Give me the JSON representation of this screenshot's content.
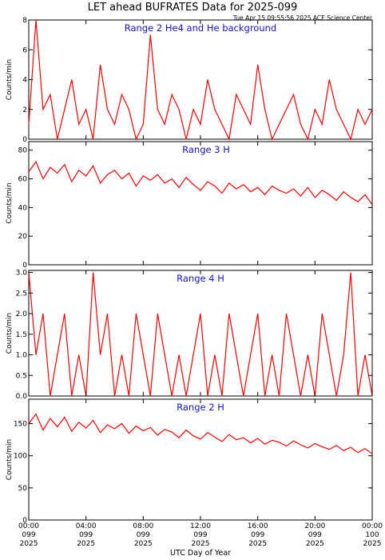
{
  "page": {
    "title": "LET ahead BUFRATES Data for 2025-099",
    "timestamp": "Tue Apr 15 09:55:56 2025 ACE Science Center",
    "x_axis_label": "UTC Day of Year"
  },
  "colors": {
    "trace": "#ff0000",
    "panel_title": "#1414c8",
    "axes": "#000000"
  },
  "x_ticks": [
    {
      "time": "00:00",
      "day": "099",
      "year": "2025"
    },
    {
      "time": "04:00",
      "day": "099",
      "year": "2025"
    },
    {
      "time": "08:00",
      "day": "099",
      "year": "2025"
    },
    {
      "time": "12:00",
      "day": "099",
      "year": "2025"
    },
    {
      "time": "16:00",
      "day": "099",
      "year": "2025"
    },
    {
      "time": "20:00",
      "day": "099",
      "year": "2025"
    },
    {
      "time": "00:00",
      "day": "100",
      "year": "2025"
    }
  ],
  "chart_data": [
    {
      "type": "line",
      "title": "Range 2 He4 and He background",
      "ylabel": "Counts/min",
      "ylim": [
        0,
        8
      ],
      "yticks": [
        0,
        2,
        4,
        6,
        8
      ],
      "xlim_hours": [
        0,
        24
      ],
      "x_hours": [
        0,
        0.5,
        1,
        1.5,
        2,
        2.5,
        3,
        3.5,
        4,
        4.5,
        5,
        5.5,
        6,
        6.5,
        7,
        7.5,
        8,
        8.5,
        9,
        9.5,
        10,
        10.5,
        11,
        11.5,
        12,
        12.5,
        13,
        13.5,
        14,
        14.5,
        15,
        15.5,
        16,
        16.5,
        17,
        17.5,
        18,
        18.5,
        19,
        19.5,
        20,
        20.5,
        21,
        21.5,
        22,
        22.5,
        23,
        23.5,
        24
      ],
      "values": [
        1,
        8,
        2,
        3,
        0,
        2,
        4,
        1,
        2,
        0,
        5,
        2,
        1,
        3,
        2,
        0,
        1,
        7,
        2,
        1,
        3,
        2,
        0,
        2,
        1,
        4,
        2,
        1,
        0,
        3,
        2,
        1,
        5,
        2,
        0,
        1,
        2,
        3,
        1,
        0,
        2,
        1,
        4,
        2,
        1,
        0,
        2,
        1,
        2
      ],
      "color": "#ff0000"
    },
    {
      "type": "line",
      "title": "Range 3 H",
      "ylabel": "Counts/min",
      "ylim": [
        0,
        86
      ],
      "yticks": [
        0,
        20,
        40,
        60,
        80
      ],
      "xlim_hours": [
        0,
        24
      ],
      "x_hours": [
        0,
        0.5,
        1,
        1.5,
        2,
        2.5,
        3,
        3.5,
        4,
        4.5,
        5,
        5.5,
        6,
        6.5,
        7,
        7.5,
        8,
        8.5,
        9,
        9.5,
        10,
        10.5,
        11,
        11.5,
        12,
        12.5,
        13,
        13.5,
        14,
        14.5,
        15,
        15.5,
        16,
        16.5,
        17,
        17.5,
        18,
        18.5,
        19,
        19.5,
        20,
        20.5,
        21,
        21.5,
        22,
        22.5,
        23,
        23.5,
        24
      ],
      "values": [
        65,
        72,
        60,
        68,
        64,
        70,
        58,
        66,
        62,
        69,
        57,
        63,
        66,
        60,
        64,
        55,
        62,
        59,
        63,
        57,
        60,
        54,
        61,
        56,
        52,
        58,
        55,
        50,
        57,
        53,
        56,
        51,
        54,
        49,
        55,
        52,
        50,
        53,
        48,
        54,
        47,
        52,
        49,
        45,
        51,
        47,
        44,
        49,
        42
      ],
      "color": "#ff0000"
    },
    {
      "type": "line",
      "title": "Range 4 H",
      "ylabel": "Counts/min",
      "ylim": [
        0,
        3.05
      ],
      "yticks": [
        0.0,
        0.5,
        1.0,
        1.5,
        2.0,
        2.5,
        3.0
      ],
      "xlim_hours": [
        0,
        24
      ],
      "x_hours": [
        0,
        0.5,
        1,
        1.5,
        2,
        2.5,
        3,
        3.5,
        4,
        4.5,
        5,
        5.5,
        6,
        6.5,
        7,
        7.5,
        8,
        8.5,
        9,
        9.5,
        10,
        10.5,
        11,
        11.5,
        12,
        12.5,
        13,
        13.5,
        14,
        14.5,
        15,
        15.5,
        16,
        16.5,
        17,
        17.5,
        18,
        18.5,
        19,
        19.5,
        20,
        20.5,
        21,
        21.5,
        22,
        22.5,
        23,
        23.5,
        24
      ],
      "values": [
        3,
        1,
        2,
        0,
        1,
        2,
        0,
        1,
        0,
        3,
        1,
        2,
        0,
        1,
        0,
        2,
        1,
        0,
        2,
        1,
        0,
        1,
        0,
        1,
        2,
        0,
        1,
        0,
        2,
        1,
        0,
        1,
        2,
        0,
        1,
        0,
        2,
        1,
        0,
        1,
        0,
        2,
        1,
        0,
        1,
        3,
        0,
        1,
        0
      ],
      "color": "#ff0000"
    },
    {
      "type": "line",
      "title": "Range 2 H",
      "ylabel": "Counts/min",
      "ylim": [
        0,
        188
      ],
      "yticks": [
        0,
        50,
        100,
        150
      ],
      "xlim_hours": [
        0,
        24
      ],
      "x_hours": [
        0,
        0.5,
        1,
        1.5,
        2,
        2.5,
        3,
        3.5,
        4,
        4.5,
        5,
        5.5,
        6,
        6.5,
        7,
        7.5,
        8,
        8.5,
        9,
        9.5,
        10,
        10.5,
        11,
        11.5,
        12,
        12.5,
        13,
        13.5,
        14,
        14.5,
        15,
        15.5,
        16,
        16.5,
        17,
        17.5,
        18,
        18.5,
        19,
        19.5,
        20,
        20.5,
        21,
        21.5,
        22,
        22.5,
        23,
        23.5,
        24
      ],
      "values": [
        150,
        165,
        140,
        158,
        145,
        160,
        138,
        152,
        143,
        155,
        136,
        148,
        142,
        150,
        135,
        146,
        139,
        144,
        132,
        141,
        137,
        128,
        140,
        131,
        126,
        136,
        129,
        122,
        133,
        125,
        128,
        120,
        127,
        118,
        124,
        121,
        115,
        123,
        117,
        112,
        119,
        114,
        110,
        116,
        108,
        113,
        105,
        111,
        103
      ],
      "color": "#ff0000"
    }
  ]
}
